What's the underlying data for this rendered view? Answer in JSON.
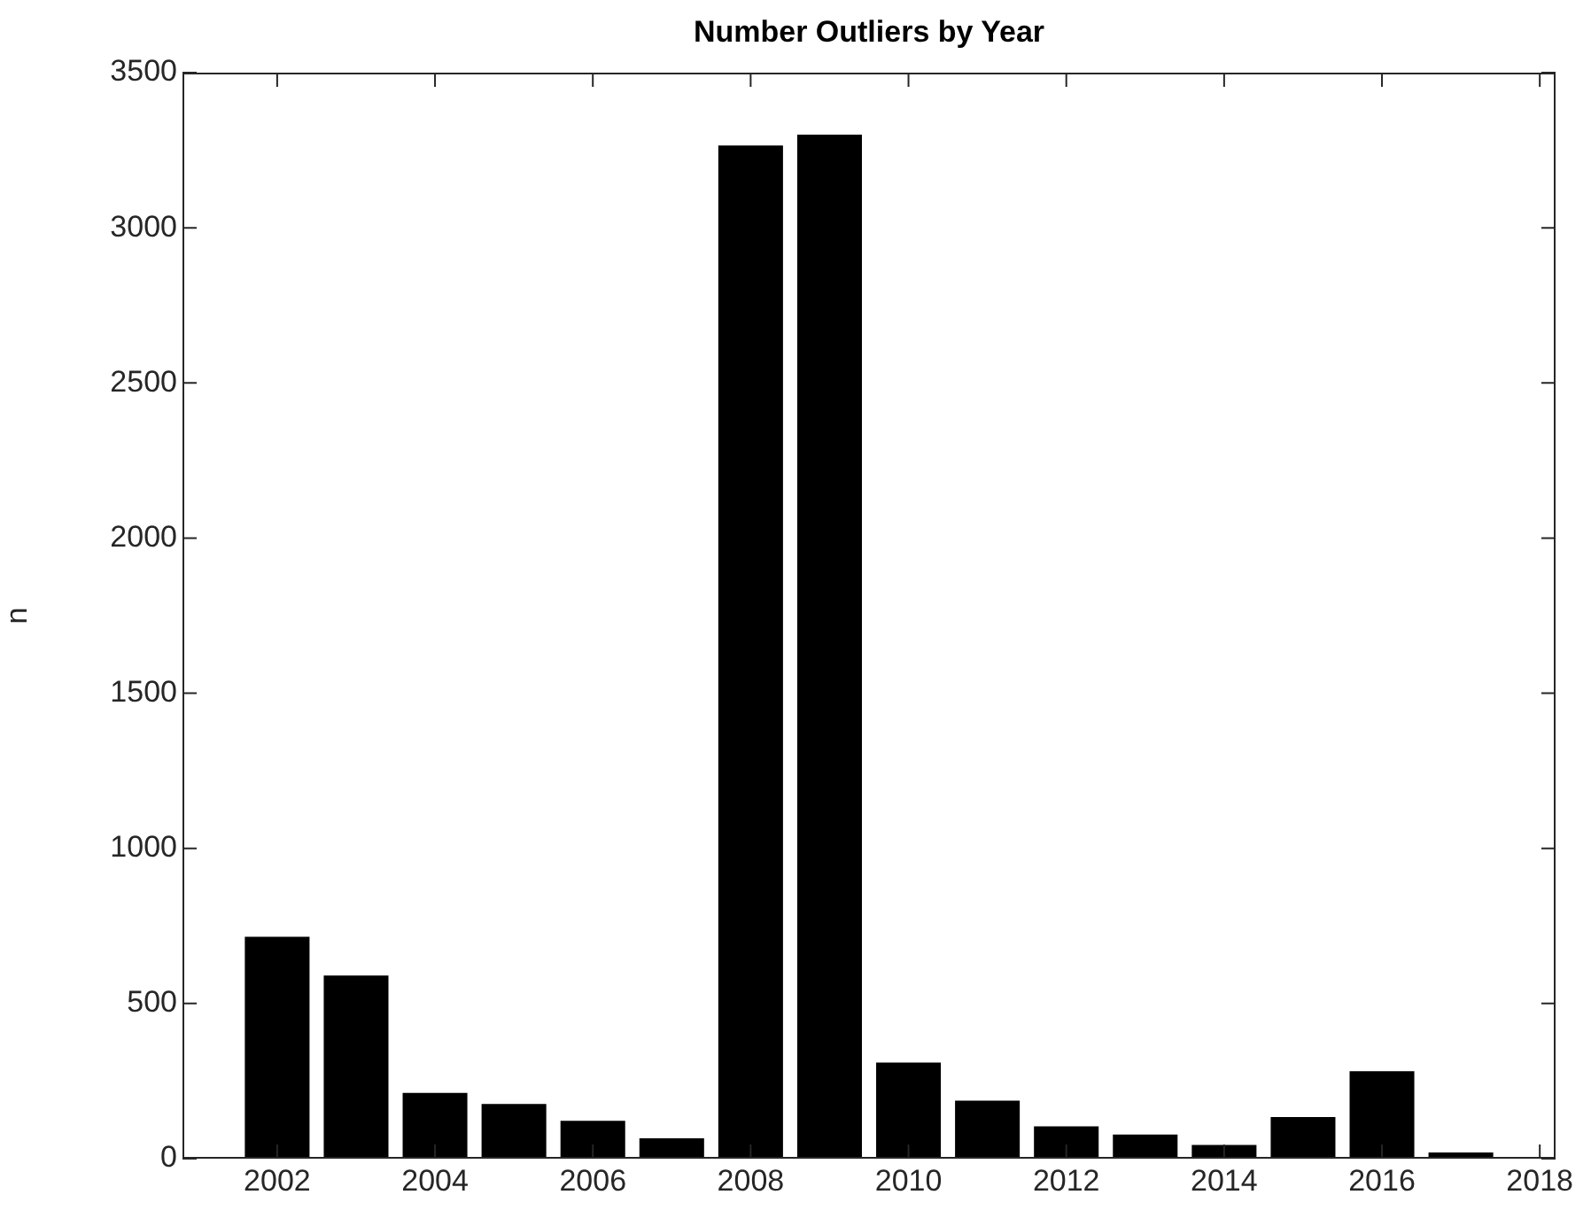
{
  "chart_data": {
    "type": "bar",
    "title": "Number Outliers by Year",
    "ylabel": "n",
    "x": [
      2002,
      2003,
      2004,
      2005,
      2006,
      2007,
      2008,
      2009,
      2010,
      2011,
      2012,
      2013,
      2014,
      2015,
      2016,
      2017
    ],
    "values": [
      715,
      590,
      212,
      176,
      122,
      66,
      3265,
      3300,
      310,
      187,
      104,
      78,
      44,
      134,
      282,
      20
    ],
    "color": "#000000",
    "xlim": [
      2000.8,
      2018.2
    ],
    "xticks": [
      2002,
      2004,
      2006,
      2008,
      2010,
      2012,
      2014,
      2016,
      2018
    ],
    "ylim": [
      0,
      3500
    ],
    "yticks": [
      0,
      500,
      1000,
      1500,
      2000,
      2500,
      3000,
      3500
    ],
    "grid": false,
    "legend": false
  }
}
